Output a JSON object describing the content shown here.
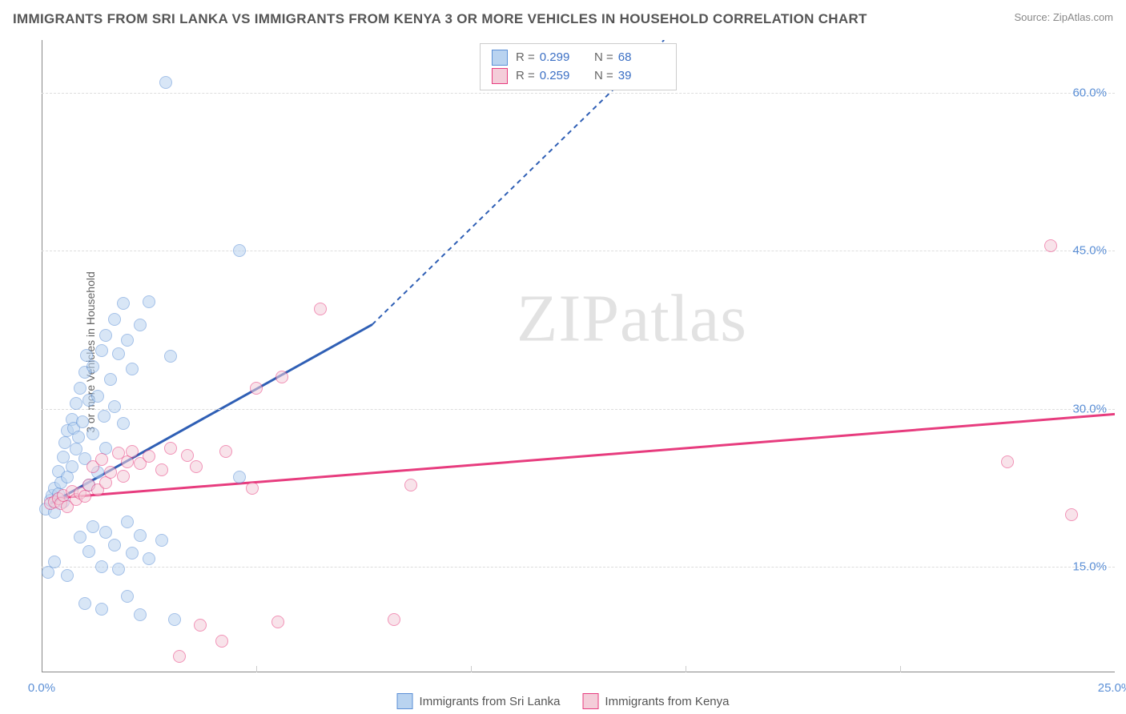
{
  "title": "IMMIGRANTS FROM SRI LANKA VS IMMIGRANTS FROM KENYA 3 OR MORE VEHICLES IN HOUSEHOLD CORRELATION CHART",
  "source": "Source: ZipAtlas.com",
  "y_axis_label": "3 or more Vehicles in Household",
  "watermark_a": "ZIP",
  "watermark_b": "atlas",
  "chart": {
    "type": "scatter",
    "background_color": "#ffffff",
    "grid_color": "#dddddd",
    "axis_color": "#888888",
    "tick_label_color": "#5b8fd6",
    "xlim": [
      0,
      25
    ],
    "ylim": [
      5,
      65
    ],
    "x_ticks": [
      0,
      5,
      10,
      15,
      20,
      25
    ],
    "x_tick_labels": [
      "0.0%",
      "",
      "",
      "",
      "",
      "25.0%"
    ],
    "y_ticks": [
      15,
      30,
      45,
      60
    ],
    "y_tick_labels": [
      "15.0%",
      "30.0%",
      "45.0%",
      "60.0%"
    ],
    "marker_radius": 8,
    "marker_opacity": 0.55,
    "series": [
      {
        "name": "Immigrants from Sri Lanka",
        "color_fill": "#b9d3f0",
        "color_stroke": "#5b8fd6",
        "R": "0.299",
        "N": "68",
        "trend": {
          "x1": 0.2,
          "y1": 21,
          "x2": 7.7,
          "y2": 38,
          "x2_ext": 14.5,
          "y2_ext": 65,
          "color": "#2f5fb5",
          "width": 3
        },
        "points": [
          [
            0.1,
            20.5
          ],
          [
            0.2,
            21.3
          ],
          [
            0.25,
            21.8
          ],
          [
            0.3,
            22.5
          ],
          [
            0.3,
            20.2
          ],
          [
            0.4,
            24.1
          ],
          [
            0.4,
            21.9
          ],
          [
            0.45,
            23.0
          ],
          [
            0.5,
            25.4
          ],
          [
            0.5,
            21.2
          ],
          [
            0.55,
            26.8
          ],
          [
            0.6,
            27.9
          ],
          [
            0.6,
            23.5
          ],
          [
            0.7,
            29.0
          ],
          [
            0.7,
            24.5
          ],
          [
            0.75,
            28.2
          ],
          [
            0.8,
            30.5
          ],
          [
            0.8,
            26.2
          ],
          [
            0.85,
            27.3
          ],
          [
            0.9,
            32.0
          ],
          [
            0.95,
            28.8
          ],
          [
            1.0,
            33.5
          ],
          [
            1.0,
            25.3
          ],
          [
            1.05,
            35.1
          ],
          [
            1.1,
            30.8
          ],
          [
            1.1,
            22.8
          ],
          [
            1.2,
            34.0
          ],
          [
            1.2,
            27.6
          ],
          [
            1.3,
            31.2
          ],
          [
            1.3,
            24.0
          ],
          [
            1.4,
            35.5
          ],
          [
            1.45,
            29.3
          ],
          [
            1.5,
            37.0
          ],
          [
            1.5,
            26.3
          ],
          [
            1.6,
            32.8
          ],
          [
            1.7,
            38.5
          ],
          [
            1.7,
            30.2
          ],
          [
            1.8,
            35.2
          ],
          [
            1.9,
            40.0
          ],
          [
            1.9,
            28.6
          ],
          [
            2.0,
            36.5
          ],
          [
            2.1,
            33.8
          ],
          [
            2.3,
            38.0
          ],
          [
            2.3,
            10.5
          ],
          [
            2.5,
            40.2
          ],
          [
            2.9,
            61.0
          ],
          [
            3.0,
            35.0
          ],
          [
            3.1,
            10.0
          ],
          [
            4.6,
            45.0
          ],
          [
            4.6,
            23.5
          ],
          [
            0.3,
            15.5
          ],
          [
            0.6,
            14.2
          ],
          [
            0.9,
            17.8
          ],
          [
            1.1,
            16.5
          ],
          [
            1.2,
            18.8
          ],
          [
            1.4,
            15.0
          ],
          [
            1.5,
            18.3
          ],
          [
            1.7,
            17.1
          ],
          [
            1.8,
            14.8
          ],
          [
            2.0,
            19.3
          ],
          [
            2.1,
            16.3
          ],
          [
            2.3,
            18.0
          ],
          [
            2.5,
            15.8
          ],
          [
            2.8,
            17.5
          ],
          [
            0.15,
            14.5
          ],
          [
            1.0,
            11.5
          ],
          [
            1.4,
            11.0
          ],
          [
            2.0,
            12.2
          ]
        ]
      },
      {
        "name": "Immigrants from Kenya",
        "color_fill": "#f4cdd9",
        "color_stroke": "#e73c7e",
        "R": "0.259",
        "N": "39",
        "trend": {
          "x1": 0.2,
          "y1": 21.5,
          "x2": 25,
          "y2": 29.5,
          "color": "#e73c7e",
          "width": 3
        },
        "points": [
          [
            0.2,
            21.0
          ],
          [
            0.3,
            21.2
          ],
          [
            0.4,
            21.5
          ],
          [
            0.45,
            21.0
          ],
          [
            0.5,
            21.8
          ],
          [
            0.6,
            20.7
          ],
          [
            0.7,
            22.2
          ],
          [
            0.8,
            21.4
          ],
          [
            0.9,
            22.0
          ],
          [
            1.0,
            21.7
          ],
          [
            1.1,
            22.8
          ],
          [
            1.2,
            24.5
          ],
          [
            1.3,
            22.3
          ],
          [
            1.4,
            25.2
          ],
          [
            1.5,
            23.0
          ],
          [
            1.6,
            24.0
          ],
          [
            1.8,
            25.8
          ],
          [
            1.9,
            23.6
          ],
          [
            2.0,
            25.0
          ],
          [
            2.1,
            26.0
          ],
          [
            2.3,
            24.8
          ],
          [
            2.5,
            25.5
          ],
          [
            2.8,
            24.2
          ],
          [
            3.0,
            26.3
          ],
          [
            3.4,
            25.6
          ],
          [
            3.6,
            24.5
          ],
          [
            4.3,
            26.0
          ],
          [
            4.9,
            22.5
          ],
          [
            5.0,
            32.0
          ],
          [
            5.6,
            33.0
          ],
          [
            6.5,
            39.5
          ],
          [
            8.6,
            22.8
          ],
          [
            3.7,
            9.5
          ],
          [
            4.2,
            8.0
          ],
          [
            5.5,
            9.8
          ],
          [
            8.2,
            10.0
          ],
          [
            3.2,
            6.5
          ],
          [
            22.5,
            25.0
          ],
          [
            23.5,
            45.5
          ],
          [
            24.0,
            20.0
          ]
        ]
      }
    ]
  },
  "legend_stats": {
    "R_label": "R =",
    "N_label": "N ="
  }
}
